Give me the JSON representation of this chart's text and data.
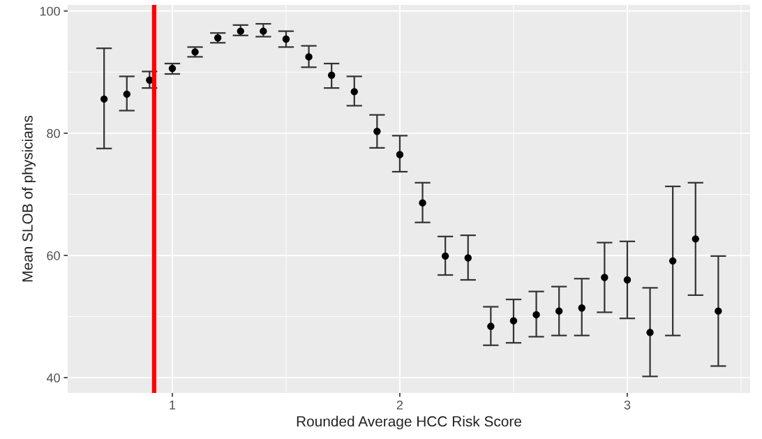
{
  "chart_data": {
    "type": "scatter",
    "xlabel": "Rounded Average HCC Risk Score",
    "ylabel": "Mean SLOB of physicians",
    "x": [
      0.7,
      0.8,
      0.9,
      1.0,
      1.1,
      1.2,
      1.3,
      1.4,
      1.5,
      1.6,
      1.7,
      1.8,
      1.9,
      2.0,
      2.1,
      2.2,
      2.3,
      2.4,
      2.5,
      2.6,
      2.7,
      2.8,
      2.9,
      3.0,
      3.1,
      3.2,
      3.3,
      3.4
    ],
    "values": [
      85.6,
      86.4,
      88.7,
      90.6,
      93.3,
      95.6,
      96.7,
      96.7,
      95.4,
      92.5,
      89.5,
      86.8,
      80.3,
      76.5,
      68.6,
      59.9,
      59.6,
      48.4,
      49.3,
      50.3,
      50.9,
      51.4,
      56.4,
      56.0,
      47.4,
      59.1,
      62.7,
      50.9
    ],
    "errors": [
      [
        77.5,
        93.9
      ],
      [
        83.7,
        89.3
      ],
      [
        87.4,
        90.1
      ],
      [
        89.7,
        91.4
      ],
      [
        92.5,
        94.1
      ],
      [
        94.8,
        96.4
      ],
      [
        96.0,
        97.7
      ],
      [
        95.8,
        97.9
      ],
      [
        94.1,
        96.7
      ],
      [
        90.8,
        94.3
      ],
      [
        87.4,
        91.4
      ],
      [
        84.5,
        89.3
      ],
      [
        77.6,
        83.0
      ],
      [
        73.7,
        79.6
      ],
      [
        65.4,
        71.9
      ],
      [
        56.8,
        63.1
      ],
      [
        56.0,
        63.3
      ],
      [
        45.3,
        51.6
      ],
      [
        45.7,
        52.8
      ],
      [
        46.7,
        54.1
      ],
      [
        46.9,
        54.9
      ],
      [
        46.9,
        56.2
      ],
      [
        50.7,
        62.1
      ],
      [
        49.7,
        62.3
      ],
      [
        40.2,
        54.7
      ],
      [
        46.9,
        71.3
      ],
      [
        53.5,
        71.9
      ],
      [
        41.9,
        59.9
      ]
    ],
    "color": "#000000",
    "marker": "circle",
    "xlim": [
      0.54,
      3.54
    ],
    "ylim": [
      37.5,
      101
    ],
    "xticks": [
      1,
      2,
      3
    ],
    "yticks": [
      40,
      60,
      80,
      100
    ],
    "grid": true,
    "ref_lines": [
      {
        "axis": "x",
        "value": 0.92,
        "color": "#ff0000"
      }
    ]
  }
}
